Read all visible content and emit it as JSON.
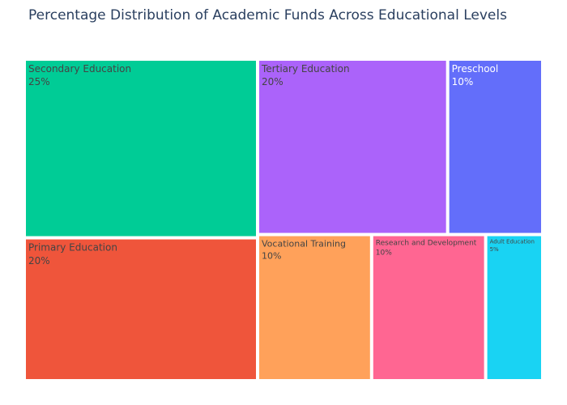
{
  "chart_data": {
    "type": "treemap",
    "title": "Percentage Distribution of Academic Funds Across Educational Levels",
    "items": [
      {
        "label": "Secondary Education",
        "value": 25,
        "value_label": "25%",
        "color": "#00cc96"
      },
      {
        "label": "Tertiary Education",
        "value": 20,
        "value_label": "20%",
        "color": "#ab63fa"
      },
      {
        "label": "Preschool",
        "value": 10,
        "value_label": "10%",
        "color": "#636efa"
      },
      {
        "label": "Primary Education",
        "value": 20,
        "value_label": "20%",
        "color": "#ef553b"
      },
      {
        "label": "Vocational Training",
        "value": 10,
        "value_label": "10%",
        "color": "#ffa15a"
      },
      {
        "label": "Research and Development",
        "value": 10,
        "value_label": "10%",
        "color": "#ff6692"
      },
      {
        "label": "Adult Education",
        "value": 5,
        "value_label": "5%",
        "color": "#19d3f3"
      }
    ]
  }
}
